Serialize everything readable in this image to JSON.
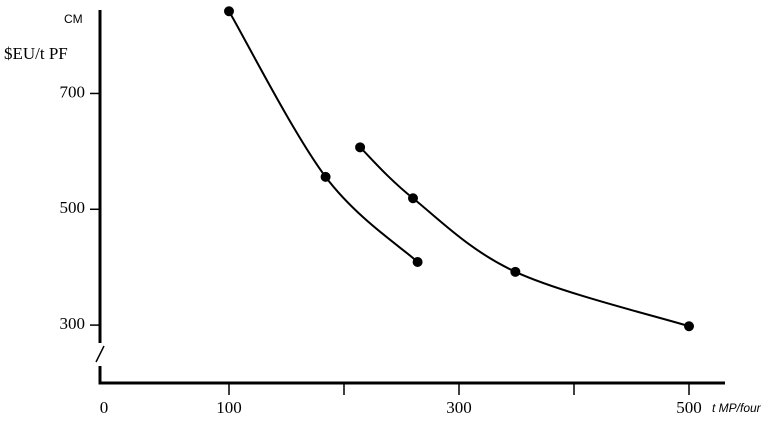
{
  "chart_data": {
    "type": "line",
    "top_label": "CM",
    "ylabel": "$EU/t  PF",
    "xlabel": "t MP/four",
    "series": [
      {
        "color": "#000000",
        "x": [
          100,
          184,
          264
        ],
        "values": [
          842,
          556,
          409
        ]
      },
      {
        "color": "#000000",
        "x": [
          214,
          260,
          349,
          500
        ],
        "values": [
          607,
          519,
          392,
          298
        ]
      }
    ],
    "xlim": [
      0,
      530
    ],
    "xticks": [
      0,
      100,
      300,
      500
    ],
    "xminor_ticks": [
      200,
      400
    ],
    "ylim": [
      200,
      845
    ],
    "yticks": [
      300,
      500,
      700
    ],
    "axis_break": true,
    "grid": false
  }
}
